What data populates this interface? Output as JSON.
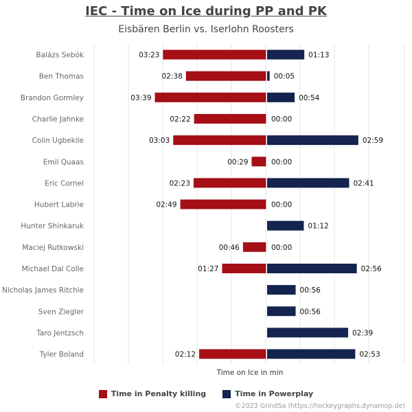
{
  "title": "IEC - Time on Ice during PP and PK",
  "subtitle": "Eisbären Berlin vs. Iserlohn Roosters",
  "credit": "©2023 GrindSa (https://hockeygraphs.dynamop.de)",
  "colors": {
    "pk": "#a50f15",
    "pp": "#14234f"
  },
  "chart_data": {
    "type": "bar",
    "orientation": "horizontal-diverging",
    "xlabel": "Time on Ice in min",
    "categories": [
      "Balázs Sebók",
      "Ben Thomas",
      "Brandon Gormley",
      "Charlie Jahnke",
      "Colin Ugbekile",
      "Emil Quaas",
      "Eric Cornel",
      "Hubert Labrie",
      "Hunter Shinkaruk",
      "Maciej Rutkowski",
      "Michael Dal Colle",
      "Nicholas James Ritchie",
      "Sven Ziegler",
      "Taro Jentzsch",
      "Tyler Boland"
    ],
    "series": [
      {
        "name": "Time in Penalty killing",
        "values": [
          203,
          158,
          219,
          142,
          183,
          29,
          143,
          169,
          null,
          46,
          87,
          null,
          null,
          null,
          132
        ],
        "labels": [
          "03:23",
          "02:38",
          "03:39",
          "02:22",
          "03:03",
          "00:29",
          "02:23",
          "02:49",
          "",
          "00:46",
          "01:27",
          "",
          "",
          "",
          "02:12"
        ]
      },
      {
        "name": "Time in Powerplay",
        "values": [
          73,
          5,
          54,
          0,
          179,
          0,
          161,
          0,
          72,
          0,
          176,
          56,
          56,
          159,
          173
        ],
        "labels": [
          "01:13",
          "00:05",
          "00:54",
          "00:00",
          "02:59",
          "00:00",
          "02:41",
          "00:00",
          "01:12",
          "00:00",
          "02:56",
          "00:56",
          "00:56",
          "02:39",
          "02:53"
        ]
      }
    ],
    "legend_position": "bottom"
  }
}
